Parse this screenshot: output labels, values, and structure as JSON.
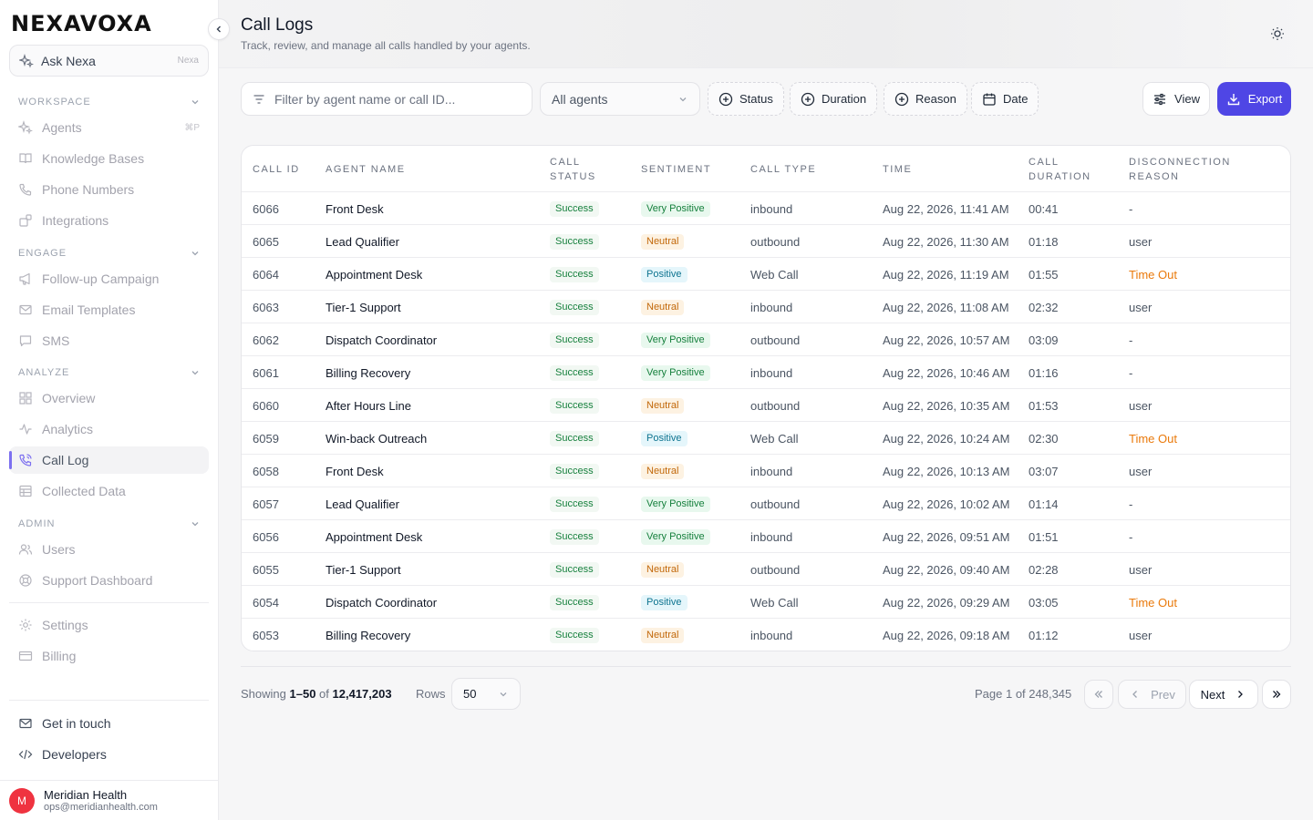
{
  "brand": {
    "logo": "NEXAVOXA"
  },
  "ask": {
    "label": "Ask Nexa",
    "hint": "Nexa"
  },
  "sidebar": {
    "sections": [
      {
        "title": "WORKSPACE",
        "items": [
          {
            "label": "Agents",
            "icon": "sparkle-icon",
            "kbd": "⌘P"
          },
          {
            "label": "Knowledge Bases",
            "icon": "book-icon"
          },
          {
            "label": "Phone Numbers",
            "icon": "phone-icon"
          },
          {
            "label": "Integrations",
            "icon": "puzzle-icon"
          }
        ]
      },
      {
        "title": "ENGAGE",
        "items": [
          {
            "label": "Follow-up Campaign",
            "icon": "megaphone-icon"
          },
          {
            "label": "Email Templates",
            "icon": "mail-icon"
          },
          {
            "label": "SMS",
            "icon": "chat-icon"
          }
        ]
      },
      {
        "title": "ANALYZE",
        "items": [
          {
            "label": "Overview",
            "icon": "grid-icon"
          },
          {
            "label": "Analytics",
            "icon": "pulse-icon"
          },
          {
            "label": "Call Log",
            "icon": "phone-log-icon",
            "active": true
          },
          {
            "label": "Collected Data",
            "icon": "table-icon"
          }
        ]
      },
      {
        "title": "ADMIN",
        "items": [
          {
            "label": "Users",
            "icon": "users-icon"
          },
          {
            "label": "Support Dashboard",
            "icon": "lifebuoy-icon"
          }
        ]
      }
    ],
    "bottom_items": [
      {
        "label": "Settings",
        "icon": "gear-icon"
      },
      {
        "label": "Billing",
        "icon": "card-icon"
      }
    ],
    "footer_items": [
      {
        "label": "Get in touch",
        "icon": "mail-icon"
      },
      {
        "label": "Developers",
        "icon": "code-icon"
      }
    ],
    "user": {
      "initial": "M",
      "name": "Meridian Health",
      "email": "ops@meridianhealth.com"
    }
  },
  "header": {
    "title": "Call Logs",
    "subtitle": "Track, review, and manage all calls handled by your agents."
  },
  "filters": {
    "search_placeholder": "Filter by agent name or call ID...",
    "agent_select": "All agents",
    "chips": [
      "Status",
      "Duration",
      "Reason",
      "Date"
    ],
    "view_label": "View",
    "export_label": "Export"
  },
  "table": {
    "columns": [
      {
        "key": "id",
        "label": "CALL ID"
      },
      {
        "key": "agent",
        "label": "AGENT NAME"
      },
      {
        "key": "status",
        "label": "CALL\nSTATUS"
      },
      {
        "key": "sentiment",
        "label": "SENTIMENT"
      },
      {
        "key": "type",
        "label": "CALL TYPE"
      },
      {
        "key": "time",
        "label": "TIME"
      },
      {
        "key": "duration",
        "label": "CALL\nDURATION"
      },
      {
        "key": "reason",
        "label": "DISCONNECTION\nREASON"
      }
    ],
    "rows": [
      {
        "id": "6066",
        "agent": "Front Desk",
        "status": "Success",
        "sentiment": "Very Positive",
        "type": "inbound",
        "time": "Aug 22, 2026, 11:41 AM",
        "duration": "00:41",
        "reason": "-"
      },
      {
        "id": "6065",
        "agent": "Lead Qualifier",
        "status": "Success",
        "sentiment": "Neutral",
        "type": "outbound",
        "time": "Aug 22, 2026, 11:30 AM",
        "duration": "01:18",
        "reason": "user"
      },
      {
        "id": "6064",
        "agent": "Appointment Desk",
        "status": "Success",
        "sentiment": "Positive",
        "type": "Web Call",
        "time": "Aug 22, 2026, 11:19 AM",
        "duration": "01:55",
        "reason": "Time Out"
      },
      {
        "id": "6063",
        "agent": "Tier-1 Support",
        "status": "Success",
        "sentiment": "Neutral",
        "type": "inbound",
        "time": "Aug 22, 2026, 11:08 AM",
        "duration": "02:32",
        "reason": "user"
      },
      {
        "id": "6062",
        "agent": "Dispatch Coordinator",
        "status": "Success",
        "sentiment": "Very Positive",
        "type": "outbound",
        "time": "Aug 22, 2026, 10:57 AM",
        "duration": "03:09",
        "reason": "-"
      },
      {
        "id": "6061",
        "agent": "Billing Recovery",
        "status": "Success",
        "sentiment": "Very Positive",
        "type": "inbound",
        "time": "Aug 22, 2026, 10:46 AM",
        "duration": "01:16",
        "reason": "-"
      },
      {
        "id": "6060",
        "agent": "After Hours Line",
        "status": "Success",
        "sentiment": "Neutral",
        "type": "outbound",
        "time": "Aug 22, 2026, 10:35 AM",
        "duration": "01:53",
        "reason": "user"
      },
      {
        "id": "6059",
        "agent": "Win-back Outreach",
        "status": "Success",
        "sentiment": "Positive",
        "type": "Web Call",
        "time": "Aug 22, 2026, 10:24 AM",
        "duration": "02:30",
        "reason": "Time Out"
      },
      {
        "id": "6058",
        "agent": "Front Desk",
        "status": "Success",
        "sentiment": "Neutral",
        "type": "inbound",
        "time": "Aug 22, 2026, 10:13 AM",
        "duration": "03:07",
        "reason": "user"
      },
      {
        "id": "6057",
        "agent": "Lead Qualifier",
        "status": "Success",
        "sentiment": "Very Positive",
        "type": "outbound",
        "time": "Aug 22, 2026, 10:02 AM",
        "duration": "01:14",
        "reason": "-"
      },
      {
        "id": "6056",
        "agent": "Appointment Desk",
        "status": "Success",
        "sentiment": "Very Positive",
        "type": "inbound",
        "time": "Aug 22, 2026, 09:51 AM",
        "duration": "01:51",
        "reason": "-"
      },
      {
        "id": "6055",
        "agent": "Tier-1 Support",
        "status": "Success",
        "sentiment": "Neutral",
        "type": "outbound",
        "time": "Aug 22, 2026, 09:40 AM",
        "duration": "02:28",
        "reason": "user"
      },
      {
        "id": "6054",
        "agent": "Dispatch Coordinator",
        "status": "Success",
        "sentiment": "Positive",
        "type": "Web Call",
        "time": "Aug 22, 2026, 09:29 AM",
        "duration": "03:05",
        "reason": "Time Out"
      },
      {
        "id": "6053",
        "agent": "Billing Recovery",
        "status": "Success",
        "sentiment": "Neutral",
        "type": "inbound",
        "time": "Aug 22, 2026, 09:18 AM",
        "duration": "01:12",
        "reason": "user"
      }
    ]
  },
  "pagination": {
    "showing_prefix": "Showing",
    "range": "1–50",
    "of_word": "of",
    "total": "12,417,203",
    "rows_label": "Rows",
    "rows_value": "50",
    "page_info": "Page 1 of 248,345",
    "prev_label": "Prev",
    "next_label": "Next"
  },
  "colors": {
    "accent": "#4f46e5",
    "active_bar": "#7c6ff0",
    "timeout": "#ea7a0c",
    "avatar": "#ef3340"
  }
}
